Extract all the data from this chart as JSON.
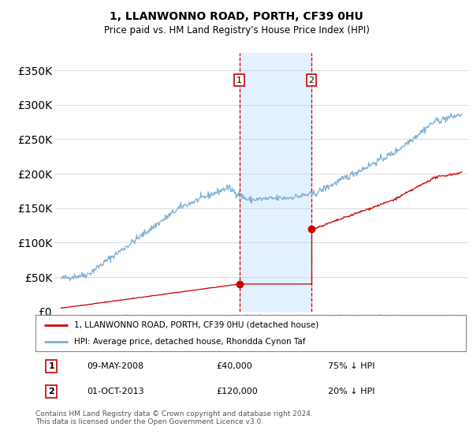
{
  "title": "1, LLANWONNO ROAD, PORTH, CF39 0HU",
  "subtitle": "Price paid vs. HM Land Registry's House Price Index (HPI)",
  "legend_line1": "1, LLANWONNO ROAD, PORTH, CF39 0HU (detached house)",
  "legend_line2": "HPI: Average price, detached house, Rhondda Cynon Taf",
  "sale1_date": "09-MAY-2008",
  "sale1_price": 40000,
  "sale1_label": "75% ↓ HPI",
  "sale1_price_str": "£40,000",
  "sale2_date": "01-OCT-2013",
  "sale2_price": 120000,
  "sale2_label": "20% ↓ HPI",
  "sale2_price_str": "£120,000",
  "footnote": "Contains HM Land Registry data © Crown copyright and database right 2024.\nThis data is licensed under the Open Government Licence v3.0.",
  "hpi_color": "#7bafd4",
  "price_color": "#cc0000",
  "shade_color": "#ddeeff",
  "sale1_x": 2008.36,
  "sale2_x": 2013.75,
  "ylim_max": 375000,
  "xlim_min": 1994.5,
  "xlim_max": 2025.5
}
